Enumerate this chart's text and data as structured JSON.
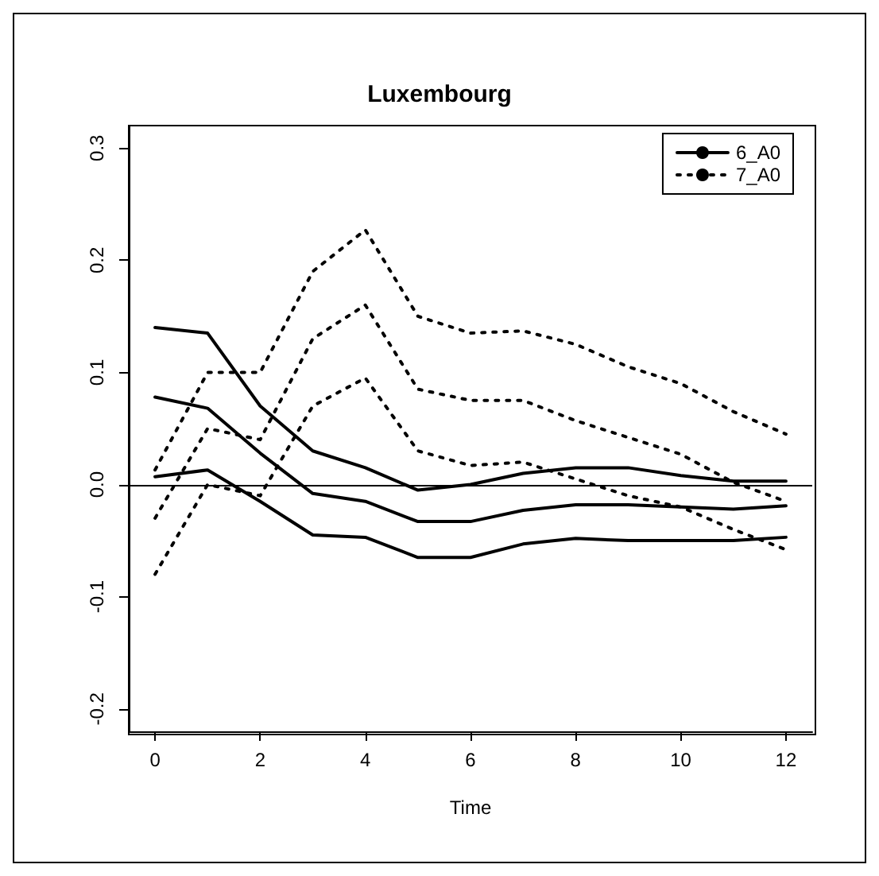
{
  "chart_data": {
    "type": "line",
    "title": "Luxembourg",
    "xlabel": "Time",
    "x": [
      0,
      1,
      2,
      3,
      4,
      5,
      6,
      7,
      8,
      9,
      10,
      11,
      12
    ],
    "series": [
      {
        "color": "#000000",
        "line_style": "solid",
        "values": [
          0.14,
          0.135,
          0.07,
          0.03,
          0.015,
          -0.005,
          0.0,
          0.01,
          0.015,
          0.015,
          0.008,
          0.003,
          0.003
        ]
      },
      {
        "name": "6_A0",
        "color": "#000000",
        "line_style": "solid",
        "values": [
          0.078,
          0.068,
          0.028,
          -0.008,
          -0.015,
          -0.033,
          -0.033,
          -0.023,
          -0.018,
          -0.018,
          -0.02,
          -0.022,
          -0.019
        ]
      },
      {
        "color": "#000000",
        "line_style": "solid",
        "values": [
          0.007,
          0.013,
          -0.015,
          -0.045,
          -0.047,
          -0.065,
          -0.065,
          -0.053,
          -0.048,
          -0.05,
          -0.05,
          -0.05,
          -0.047
        ]
      },
      {
        "color": "#000000",
        "line_style": "dotted",
        "values": [
          0.013,
          0.1,
          0.1,
          0.19,
          0.227,
          0.15,
          0.135,
          0.137,
          0.125,
          0.105,
          0.09,
          0.065,
          0.045
        ]
      },
      {
        "name": "7_A0",
        "color": "#000000",
        "line_style": "dotted",
        "values": [
          -0.03,
          0.05,
          0.04,
          0.13,
          0.16,
          0.085,
          0.075,
          0.075,
          0.057,
          0.042,
          0.027,
          0.002,
          -0.015
        ]
      },
      {
        "color": "#000000",
        "line_style": "dotted",
        "values": [
          -0.08,
          0.0,
          -0.01,
          0.07,
          0.095,
          0.03,
          0.017,
          0.02,
          0.005,
          -0.01,
          -0.02,
          -0.04,
          -0.058
        ]
      }
    ],
    "xlim": [
      -0.5,
      12.5
    ],
    "xticks": [
      0,
      2,
      4,
      6,
      8,
      10,
      12
    ],
    "ylim": [
      -0.22,
      0.32
    ],
    "yticks": [
      -0.2,
      -0.1,
      {
        "value": 0,
        "label": "0.0"
      },
      0.1,
      0.2,
      0.3
    ],
    "ref_lines": [
      {
        "axis": "y",
        "value": 0,
        "color": "#000000",
        "line_style": "solid"
      }
    ],
    "grid": false,
    "legend": "top right",
    "marker": "none"
  }
}
